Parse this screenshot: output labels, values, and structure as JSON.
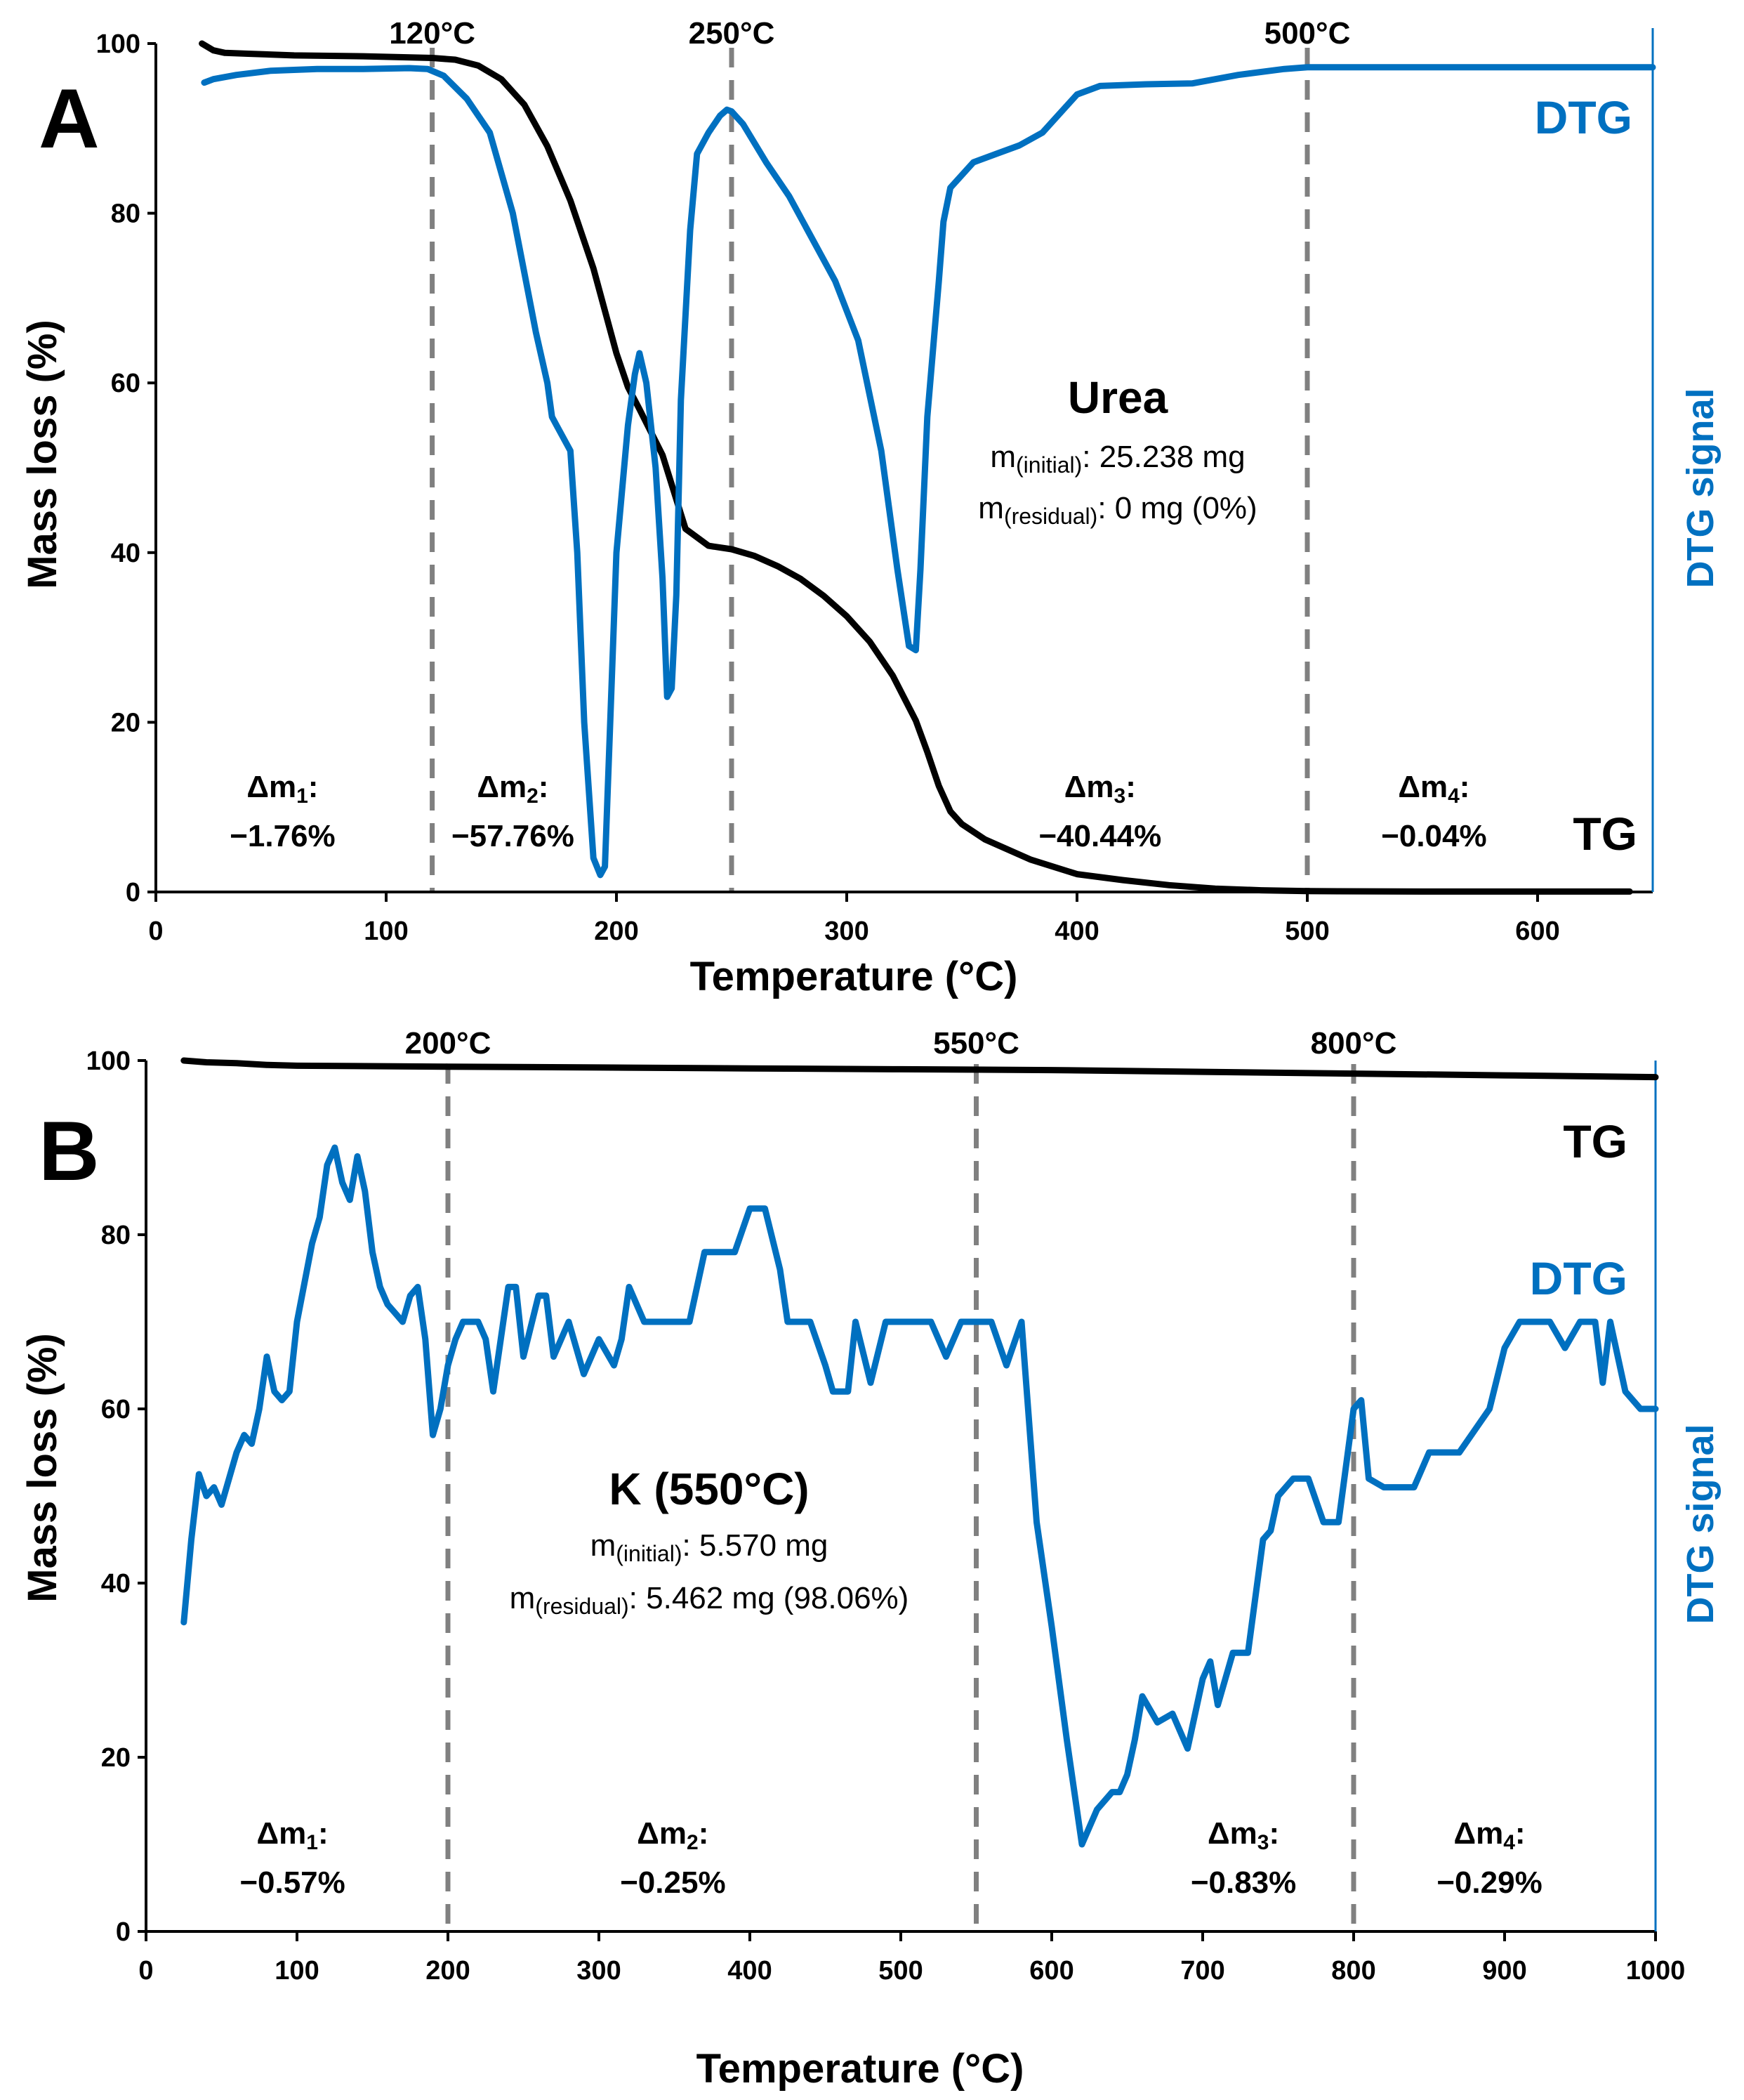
{
  "chart_data": [
    {
      "panel": "A",
      "type": "line",
      "xlabel": "Temperature (°C)",
      "ylabel": "Mass loss (%)",
      "y2label": "DTG signal",
      "xlim": [
        0,
        650
      ],
      "ylim": [
        0,
        100
      ],
      "xticks": [
        0,
        100,
        200,
        300,
        400,
        500,
        600
      ],
      "yticks": [
        0,
        20,
        40,
        60,
        80,
        100
      ],
      "sample": {
        "name": "Urea",
        "initial_sub": "(initial)",
        "initial_value": ": 25.238 mg",
        "residual_sub": "(residual)",
        "residual_value": ": 0 mg (0%)"
      },
      "temperature_markers": [
        {
          "x": 120,
          "label": "120°C"
        },
        {
          "x": 250,
          "label": "250°C"
        },
        {
          "x": 500,
          "label": "500°C"
        }
      ],
      "stages": [
        {
          "sub": "1",
          "value": "−1.76%",
          "x_center": 55
        },
        {
          "sub": "2",
          "value": "−57.76%",
          "x_center": 155
        },
        {
          "sub": "3",
          "value": "−40.44%",
          "x_center": 410
        },
        {
          "sub": "4",
          "value": "−0.04%",
          "x_center": 555
        }
      ],
      "series": [
        {
          "name": "TG",
          "color": "#000000",
          "x": [
            20,
            25,
            30,
            40,
            60,
            90,
            120,
            130,
            140,
            150,
            160,
            170,
            180,
            190,
            200,
            205,
            210,
            220,
            230,
            240,
            250,
            260,
            270,
            280,
            290,
            300,
            310,
            320,
            330,
            335,
            340,
            345,
            350,
            360,
            380,
            400,
            420,
            440,
            460,
            480,
            500,
            550,
            600,
            640
          ],
          "y": [
            100,
            99.2,
            98.9,
            98.8,
            98.6,
            98.5,
            98.3,
            98.1,
            97.4,
            95.8,
            92.8,
            87.9,
            81.5,
            73.5,
            63.5,
            59.5,
            56.9,
            51.5,
            42.8,
            40.8,
            40.4,
            39.6,
            38.4,
            36.9,
            34.9,
            32.5,
            29.5,
            25.5,
            20.2,
            16.5,
            12.5,
            9.5,
            8.0,
            6.2,
            3.8,
            2.1,
            1.4,
            0.8,
            0.4,
            0.2,
            0.1,
            0.05,
            0.05,
            0.05
          ]
        },
        {
          "name": "DTG",
          "color": "#0070C0",
          "x": [
            21,
            25,
            35,
            50,
            70,
            90,
            110,
            118,
            125,
            135,
            145,
            155,
            165,
            170,
            172,
            174,
            180,
            183,
            186,
            190,
            193,
            195,
            200,
            205,
            208,
            210,
            213,
            217,
            220,
            222,
            224,
            226,
            228,
            232,
            235,
            240,
            245,
            248,
            250,
            255,
            265,
            275,
            285,
            295,
            305,
            315,
            322,
            327,
            330,
            332,
            335,
            340,
            342,
            345,
            355,
            365,
            375,
            385,
            390,
            400,
            410,
            430,
            450,
            470,
            490,
            500,
            550,
            600,
            650
          ],
          "y": [
            95.4,
            95.8,
            96.3,
            96.8,
            97.0,
            97.0,
            97.1,
            97.0,
            96.2,
            93.5,
            89.5,
            80.0,
            66.0,
            60.0,
            56.0,
            55.0,
            52.0,
            40.0,
            20.0,
            4.0,
            2.0,
            3.0,
            40.0,
            55.0,
            61.0,
            63.5,
            60.0,
            50.0,
            37.0,
            23.0,
            24.0,
            35.0,
            58.0,
            78.0,
            87.0,
            89.5,
            91.5,
            92.2,
            92.0,
            90.5,
            86.0,
            82.0,
            77.0,
            72.0,
            65.0,
            52.0,
            38.0,
            29.0,
            28.5,
            38.0,
            56.0,
            72.0,
            79.0,
            83.0,
            86.0,
            87.0,
            88.0,
            89.5,
            91.0,
            94.0,
            95.0,
            95.2,
            95.3,
            96.3,
            97.0,
            97.2,
            97.2,
            97.2,
            97.2
          ]
        }
      ],
      "series_labels": {
        "TG": "TG",
        "DTG": "DTG"
      }
    },
    {
      "panel": "B",
      "type": "line",
      "xlabel": "Temperature (°C)",
      "ylabel": "Mass loss (%)",
      "y2label": "DTG signal",
      "xlim": [
        0,
        1000
      ],
      "ylim": [
        0,
        100
      ],
      "xticks": [
        0,
        100,
        200,
        300,
        400,
        500,
        600,
        700,
        800,
        900,
        1000
      ],
      "yticks": [
        0,
        20,
        40,
        60,
        80,
        100
      ],
      "sample": {
        "name": "K (550°C)",
        "initial_sub": "(initial)",
        "initial_value": ": 5.570 mg",
        "residual_sub": "(residual)",
        "residual_value": ": 5.462 mg (98.06%)"
      },
      "temperature_markers": [
        {
          "x": 200,
          "label": "200°C"
        },
        {
          "x": 550,
          "label": "550°C"
        },
        {
          "x": 800,
          "label": "800°C"
        }
      ],
      "stages": [
        {
          "sub": "1",
          "value": "−0.57%",
          "x_center": 97
        },
        {
          "sub": "2",
          "value": "−0.25%",
          "x_center": 349
        },
        {
          "sub": "3",
          "value": "−0.83%",
          "x_center": 727
        },
        {
          "sub": "4",
          "value": "−0.29%",
          "x_center": 890
        }
      ],
      "series": [
        {
          "name": "TG",
          "color": "#000000",
          "x": [
            25,
            40,
            60,
            80,
            100,
            200,
            300,
            400,
            500,
            600,
            700,
            800,
            900,
            1000
          ],
          "y": [
            100,
            99.8,
            99.7,
            99.5,
            99.4,
            99.3,
            99.2,
            99.1,
            99.0,
            98.9,
            98.7,
            98.5,
            98.3,
            98.1
          ]
        },
        {
          "name": "DTG",
          "color": "#0070C0",
          "x": [
            25,
            30,
            35,
            40,
            45,
            50,
            60,
            65,
            70,
            75,
            80,
            85,
            90,
            95,
            100,
            110,
            115,
            120,
            125,
            130,
            135,
            140,
            145,
            150,
            155,
            160,
            165,
            170,
            175,
            180,
            185,
            190,
            195,
            200,
            205,
            210,
            215,
            220,
            225,
            230,
            240,
            245,
            250,
            260,
            265,
            270,
            280,
            285,
            290,
            300,
            310,
            315,
            320,
            330,
            340,
            350,
            355,
            360,
            370,
            380,
            390,
            400,
            410,
            420,
            425,
            430,
            440,
            450,
            455,
            460,
            465,
            470,
            480,
            490,
            500,
            510,
            520,
            530,
            540,
            550,
            560,
            570,
            580,
            590,
            600,
            610,
            620,
            630,
            640,
            645,
            650,
            655,
            660,
            670,
            680,
            690,
            700,
            705,
            710,
            720,
            730,
            740,
            745,
            750,
            760,
            770,
            780,
            790,
            800,
            805,
            810,
            820,
            840,
            850,
            870,
            890,
            900,
            910,
            920,
            930,
            940,
            950,
            960,
            965,
            970,
            980,
            990,
            1000
          ],
          "y": [
            35.5,
            45,
            52.5,
            50,
            51,
            49,
            55,
            57,
            56,
            60,
            66,
            62,
            61,
            62,
            70,
            79,
            82,
            88,
            90,
            86,
            84,
            89,
            85,
            78,
            74,
            72,
            71,
            70,
            73,
            74,
            68,
            57,
            60,
            65,
            68,
            70,
            70,
            70,
            68,
            62,
            74,
            74,
            66,
            73,
            73,
            66,
            70,
            67,
            64,
            68,
            65,
            68,
            74,
            70,
            70,
            70,
            70,
            70,
            78,
            78,
            78,
            83,
            83,
            76,
            70,
            70,
            70,
            65,
            62,
            62,
            62,
            70,
            63,
            70,
            70,
            70,
            70,
            66,
            70,
            70,
            70,
            65,
            70,
            47,
            35,
            22,
            10,
            14,
            16,
            16,
            18,
            22,
            27,
            24,
            25,
            21,
            29,
            31,
            26,
            32,
            32,
            45,
            46,
            50,
            52,
            52,
            47,
            47,
            60,
            61,
            52,
            51,
            51,
            55,
            55,
            60,
            67,
            70,
            70,
            70,
            67,
            70,
            70,
            63,
            70,
            62,
            60,
            60
          ]
        }
      ],
      "series_labels": {
        "TG": "TG",
        "DTG": "DTG"
      }
    }
  ],
  "labels": {
    "panel_a": "A",
    "panel_b": "B",
    "mass_prefix": "m",
    "delta_prefix": "Δm",
    "delta_suffix": ":"
  }
}
